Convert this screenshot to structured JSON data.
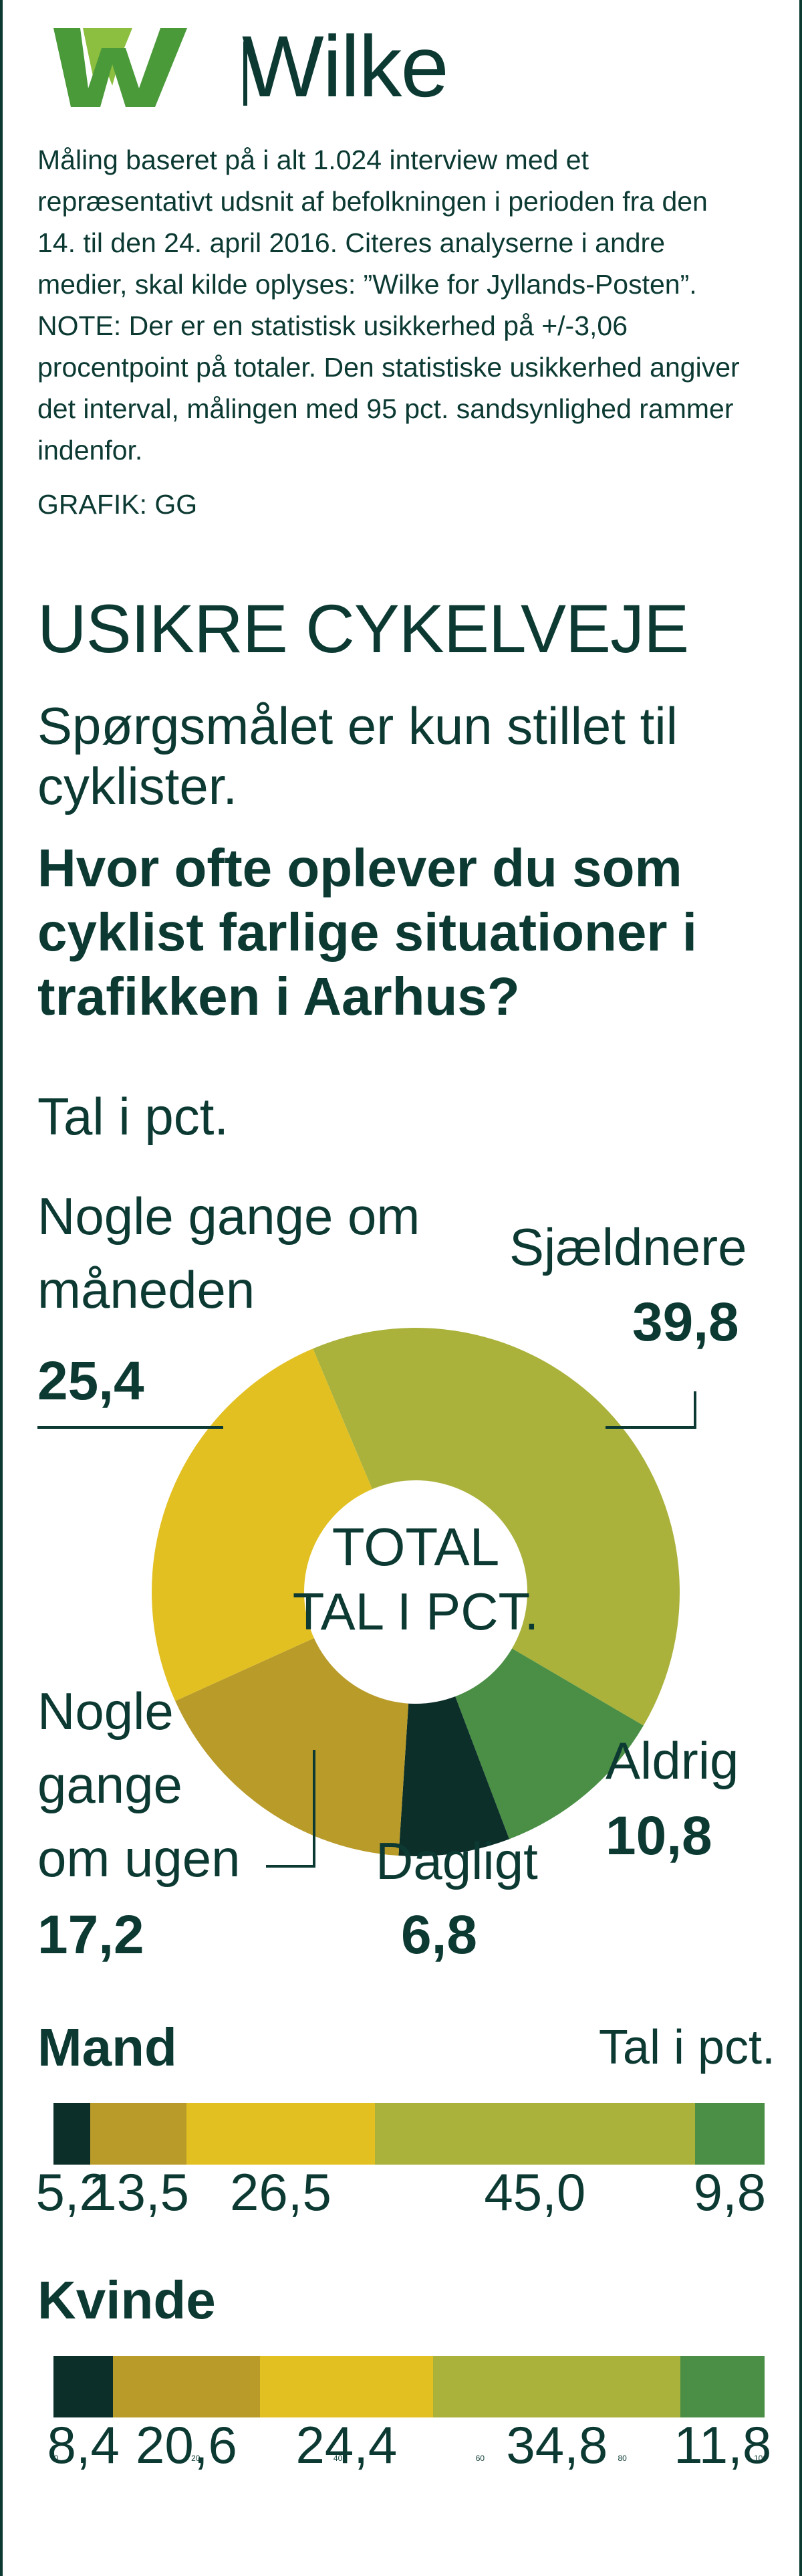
{
  "logo": {
    "name": "Wilke"
  },
  "note": "Måling baseret på i alt 1.024 interview med et repræsentativt udsnit af befolkningen i perioden fra den 14. til den 24. april 2016. Citeres analyserne i andre medier, skal kilde oplyses: ”Wilke for Jyllands-Posten”.  NOTE: Der er en statistisk usikkerhed på +/-3,06  procentpoint på totaler. Den statistiske usikkerhed angiver det interval, målingen med 95 pct. sandsynlighed rammer indenfor.",
  "credit": "GRAFIK: GG",
  "title": "USIKRE CYKELVEJE",
  "subtitle": "Spørgsmålet er kun stillet til cyklister.",
  "question": "Hvor ofte oplever du som cyklist farlige situationer i trafikken i Aarhus?",
  "unit_label": "Tal i pct.",
  "colors": {
    "dark": "#0c2f2a",
    "ochre": "#b99b2a",
    "yellow": "#e2c022",
    "olive": "#aab23c",
    "green": "#4a8f45",
    "text": "#0c3a33",
    "logo_light": "#8cbe3f",
    "logo_dark": "#4a9a3a"
  },
  "chart_data": [
    {
      "type": "pie",
      "variant": "donut",
      "center_label": [
        "TOTAL",
        "TAL I PCT."
      ],
      "slices": [
        {
          "label": "Sjældnere",
          "value": 39.8,
          "value_text": "39,8",
          "color": "#aab23c"
        },
        {
          "label": "Aldrig",
          "value": 10.8,
          "value_text": "10,8",
          "color": "#4a8f45"
        },
        {
          "label": "Dagligt",
          "value": 6.8,
          "value_text": "6,8",
          "color": "#0c2f2a"
        },
        {
          "label": "Nogle gange om ugen",
          "value": 17.2,
          "value_text": "17,2",
          "color": "#b99b2a"
        },
        {
          "label": "Nogle gange om måneden",
          "value": 25.4,
          "value_text": "25,4",
          "color": "#e2c022"
        }
      ],
      "labels_display": {
        "sjaeldnere": "Sjældnere",
        "aldrig": "Aldrig",
        "dagligt": "Dagligt",
        "ugen": [
          "Nogle",
          "gange",
          "om ugen"
        ],
        "maaneden": [
          "Nogle gange om",
          "måneden"
        ]
      }
    },
    {
      "type": "bar",
      "orientation": "horizontal",
      "stacked": true,
      "unit": "Tal i pct.",
      "categories": [
        "Dagligt",
        "Nogle gange om ugen",
        "Nogle gange om måneden",
        "Sjældnere",
        "Aldrig"
      ],
      "xlim": [
        0,
        100
      ],
      "x_ticks": [
        "0",
        "20",
        "40",
        "60",
        "80",
        "100"
      ],
      "series": [
        {
          "name": "Mand",
          "values": [
            5.2,
            13.5,
            26.5,
            45.0,
            9.8
          ],
          "value_texts": [
            "5,2",
            "13,5",
            "26,5",
            "45,0",
            "9,8"
          ]
        },
        {
          "name": "Kvinde",
          "values": [
            8.4,
            20.6,
            24.4,
            34.8,
            11.8
          ],
          "value_texts": [
            "8,4",
            "20,6",
            "24,4",
            "34,8",
            "11,8"
          ]
        }
      ]
    }
  ]
}
